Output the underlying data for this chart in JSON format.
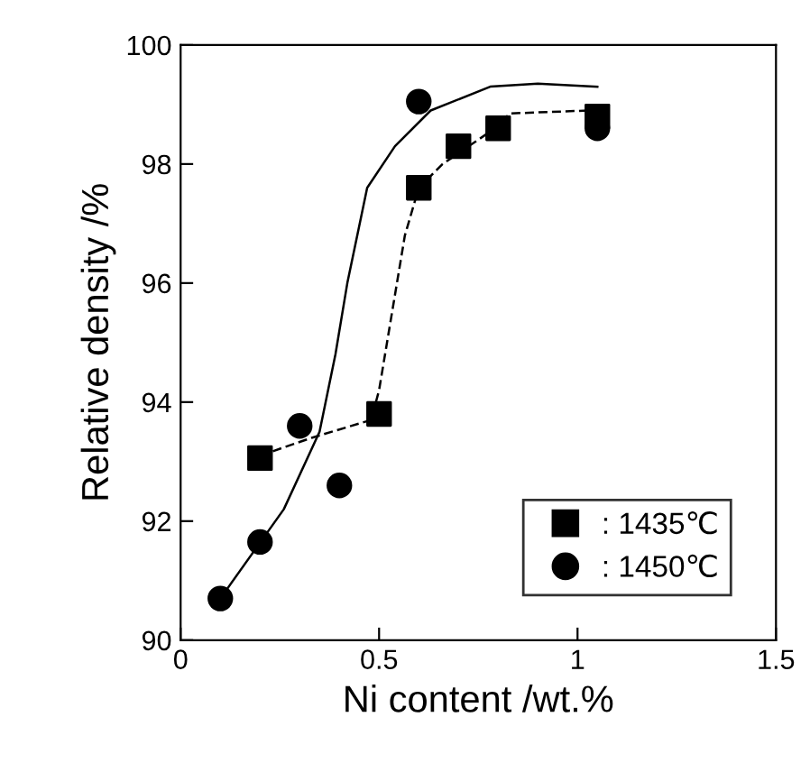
{
  "chart_data": {
    "type": "scatter",
    "xlabel": "Ni content /wt.%",
    "ylabel": "Relative density /%",
    "xlim": [
      0,
      1.5
    ],
    "xticks": [
      0,
      0.5,
      1,
      1.5
    ],
    "ylim": [
      90,
      100
    ],
    "yticks": [
      90,
      92,
      94,
      96,
      98,
      100
    ],
    "grid": false,
    "legend": "bottom right",
    "series": [
      {
        "name": ": 1435℃",
        "marker": "square",
        "color": "#000000",
        "x": [
          0.2,
          0.5,
          0.6,
          0.7,
          0.8,
          1.05
        ],
        "values": [
          93.06,
          93.8,
          97.6,
          98.3,
          98.6,
          98.8
        ]
      },
      {
        "name": ": 1450℃",
        "marker": "circle",
        "color": "#000000",
        "x": [
          0.1,
          0.2,
          0.3,
          0.4,
          0.6,
          1.05
        ],
        "values": [
          90.7,
          91.65,
          93.6,
          92.6,
          99.05,
          98.6
        ]
      },
      {
        "type": "line",
        "line_style": "dashed",
        "color": "#000000",
        "x": [
          0.2,
          0.33,
          0.48,
          0.5,
          0.535,
          0.565,
          0.6,
          0.66,
          0.77,
          0.83,
          1.03
        ],
        "values": [
          93.1,
          93.4,
          93.7,
          94.2,
          95.6,
          96.8,
          97.6,
          98.0,
          98.5,
          98.85,
          98.9
        ]
      },
      {
        "type": "line",
        "line_style": "solid",
        "color": "#000000",
        "x": [
          0.1,
          0.26,
          0.35,
          0.39,
          0.42,
          0.47,
          0.54,
          0.63,
          0.78,
          0.9,
          1.05
        ],
        "values": [
          90.7,
          92.2,
          93.5,
          94.8,
          96.0,
          97.6,
          98.3,
          98.9,
          99.3,
          99.35,
          99.3
        ]
      }
    ]
  }
}
